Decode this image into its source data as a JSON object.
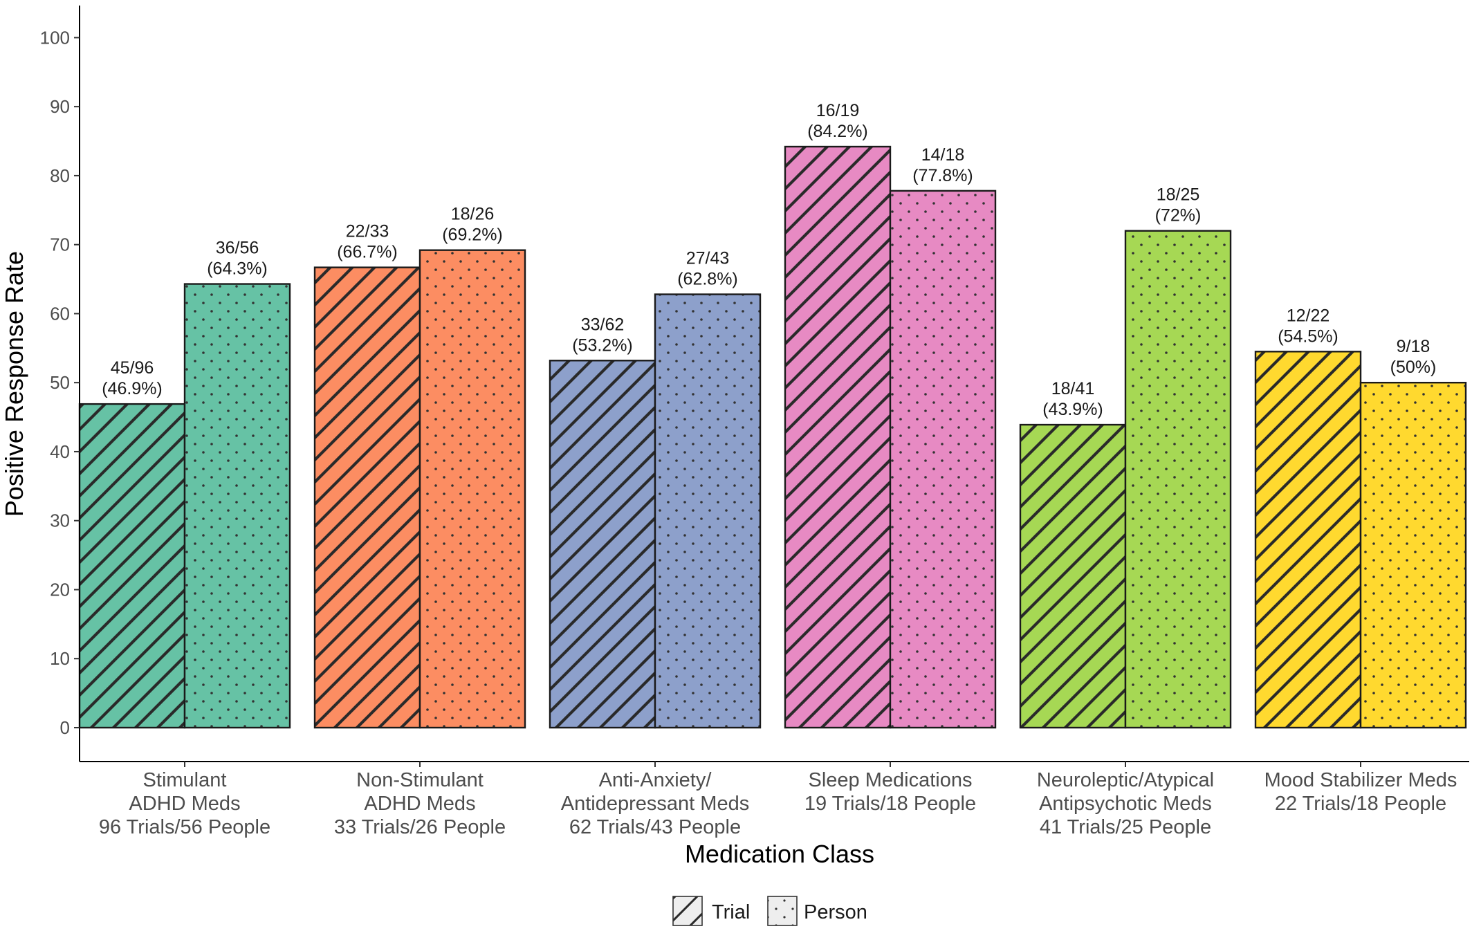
{
  "chart_data": {
    "type": "bar",
    "xlabel": "Medication Class",
    "ylabel": "Positive Response Rate",
    "ylim": [
      -5,
      105
    ],
    "yticks": [
      0,
      10,
      20,
      30,
      40,
      50,
      60,
      70,
      80,
      90,
      100
    ],
    "grid": false,
    "legend_position": "bottom",
    "categories": [
      {
        "lines": [
          "Stimulant",
          "ADHD Meds",
          "96 Trials/56 People"
        ],
        "color": "#66c2a5"
      },
      {
        "lines": [
          "Non-Stimulant",
          "ADHD Meds",
          "33 Trials/26 People"
        ],
        "color": "#fc8d62"
      },
      {
        "lines": [
          "Anti-Anxiety/",
          "Antidepressant Meds",
          "62 Trials/43 People"
        ],
        "color": "#8da0cb"
      },
      {
        "lines": [
          "Sleep Medications",
          "19 Trials/18 People"
        ],
        "color": "#e78ac3"
      },
      {
        "lines": [
          "Neuroleptic/Atypical",
          "Antipsychotic Meds",
          "41 Trials/25 People"
        ],
        "color": "#a6d854"
      },
      {
        "lines": [
          "Mood Stabilizer Meds",
          "22 Trials/18 People"
        ],
        "color": "#ffd92f"
      }
    ],
    "series": [
      {
        "name": "Trial",
        "pattern": "stripe",
        "values": [
          46.9,
          66.7,
          53.2,
          84.2,
          43.9,
          54.5
        ],
        "labels": [
          [
            "45/96",
            "(46.9%)"
          ],
          [
            "22/33",
            "(66.7%)"
          ],
          [
            "33/62",
            "(53.2%)"
          ],
          [
            "16/19",
            "(84.2%)"
          ],
          [
            "18/41",
            "(43.9%)"
          ],
          [
            "12/22",
            "(54.5%)"
          ]
        ]
      },
      {
        "name": "Person",
        "pattern": "dot",
        "values": [
          64.3,
          69.2,
          62.8,
          77.8,
          72,
          50
        ],
        "labels": [
          [
            "36/56",
            "(64.3%)"
          ],
          [
            "18/26",
            "(69.2%)"
          ],
          [
            "27/43",
            "(62.8%)"
          ],
          [
            "14/18",
            "(77.8%)"
          ],
          [
            "18/25",
            "(72%)"
          ],
          [
            "9/18",
            "(50%)"
          ]
        ]
      }
    ]
  }
}
